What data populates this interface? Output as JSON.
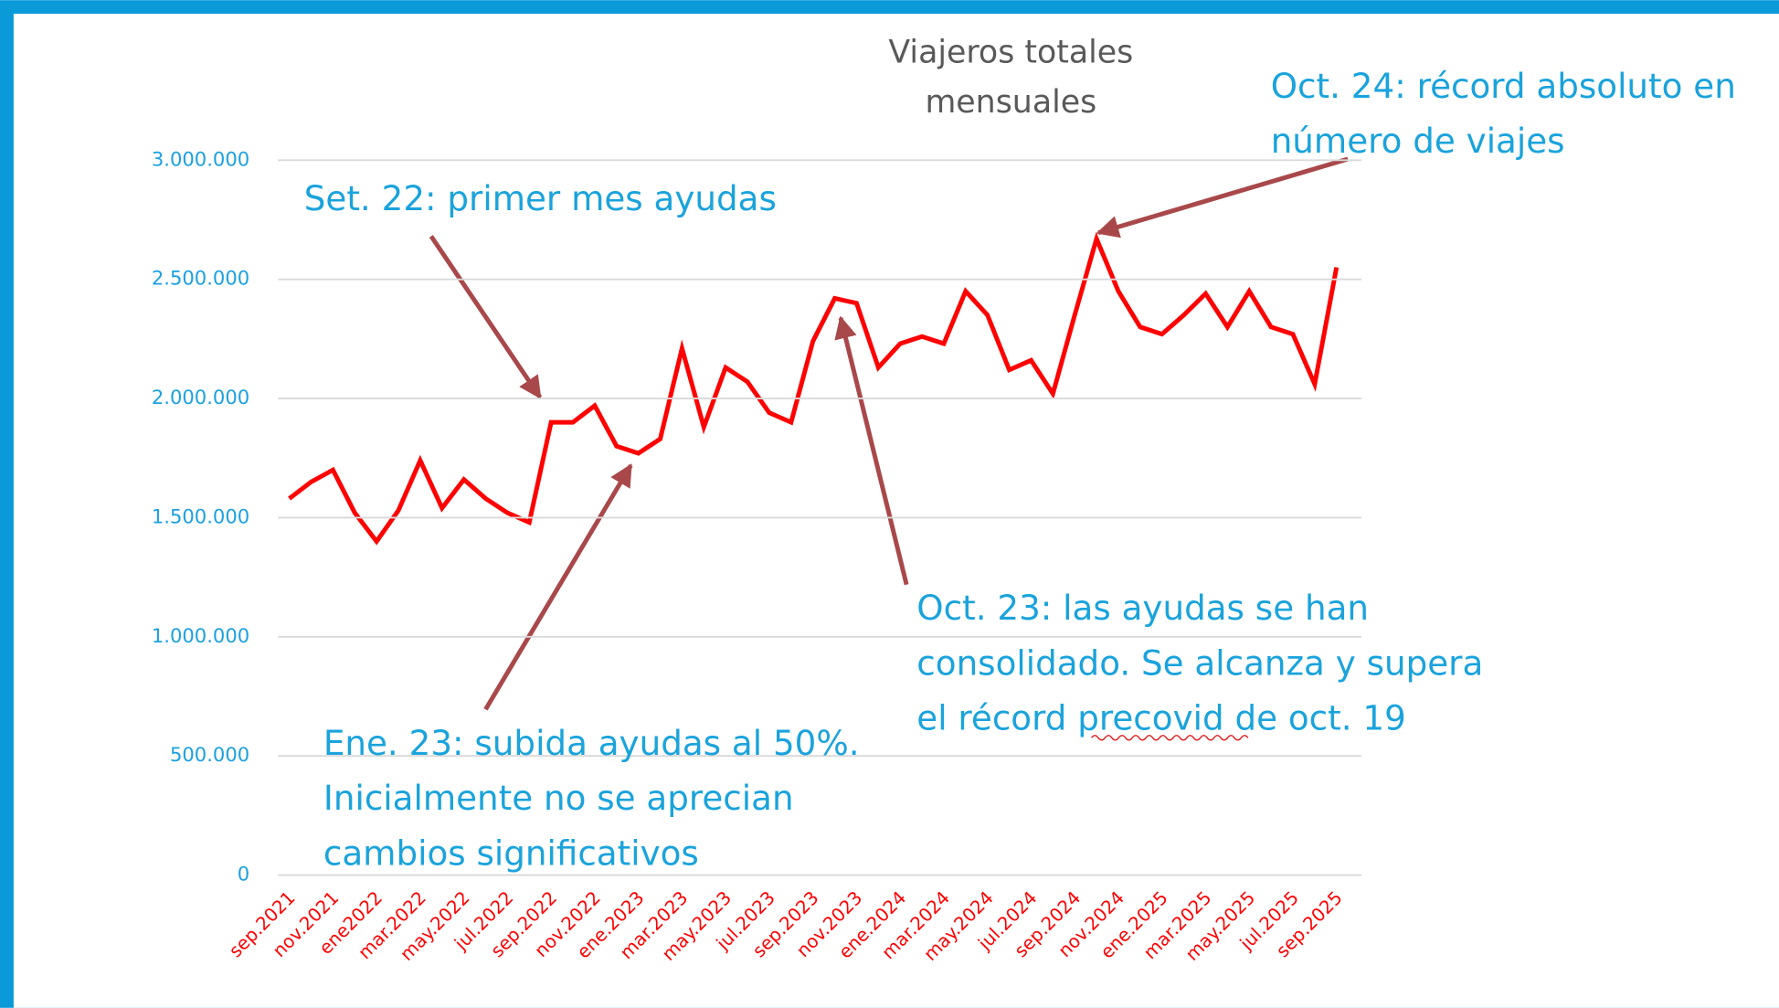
{
  "chart_data": {
    "type": "line",
    "title": [
      "Viajeros totales",
      "mensuales"
    ],
    "color": "#ff0000",
    "grid": true,
    "categories": [
      "sep.2021",
      null,
      "nov.2021",
      null,
      "ene2022",
      null,
      "mar.2022",
      null,
      "may.2022",
      null,
      "jul.2022",
      null,
      "sep.2022",
      null,
      "nov.2022",
      null,
      "ene.2023",
      null,
      "mar.2023",
      null,
      "may.2023",
      null,
      "jul.2023",
      null,
      "sep.2023",
      null,
      "nov.2023",
      null,
      "ene.2024",
      null,
      "mar.2024",
      null,
      "may.2024",
      null,
      "jul.2024",
      null,
      "sep.2024",
      null,
      "nov.2024",
      null,
      "ene.2025",
      null,
      "mar.2025",
      null,
      "may.2025",
      null,
      "jul.2025",
      null,
      "sep.2025"
    ],
    "values": [
      1580000,
      1650000,
      1700000,
      1520000,
      1400000,
      1530000,
      1740000,
      1540000,
      1660000,
      1580000,
      1520000,
      1480000,
      1900000,
      1900000,
      1970000,
      1800000,
      1770000,
      1830000,
      2210000,
      1880000,
      2130000,
      2070000,
      1940000,
      1900000,
      2240000,
      2420000,
      2400000,
      2130000,
      2230000,
      2260000,
      2230000,
      2450000,
      2350000,
      2120000,
      2160000,
      2020000,
      2350000,
      2670000,
      2450000,
      2300000,
      2270000,
      2350000,
      2440000,
      2300000,
      2450000,
      2300000,
      2270000,
      2060000,
      2550000
    ],
    "ylim": [
      0,
      3000000
    ],
    "yticks": [
      0,
      {
        "value": 500000,
        "label": "500.000"
      },
      {
        "value": 1000000,
        "label": "1.000.000"
      },
      {
        "value": 1500000,
        "label": "1.500.000"
      },
      {
        "value": 2000000,
        "label": "2.000.000"
      },
      {
        "value": 2500000,
        "label": "2.500.000"
      },
      {
        "value": 3000000,
        "label": "3.000.000"
      }
    ],
    "annotations": [
      {
        "lines": [
          "Set. 22: primer mes ayudas"
        ]
      },
      {
        "lines": [
          "Ene. 23: subida ayudas al 50%.",
          "Inicialmente no se aprecian",
          "cambios significativos"
        ]
      },
      {
        "lines": [
          "Oct. 23: las ayudas se han",
          "consolidado. Se alcanza y supera",
          "el récord precovid de oct. 19"
        ]
      },
      {
        "lines": [
          "Oct. 24: récord absoluto en",
          "número de viajes"
        ]
      }
    ]
  }
}
